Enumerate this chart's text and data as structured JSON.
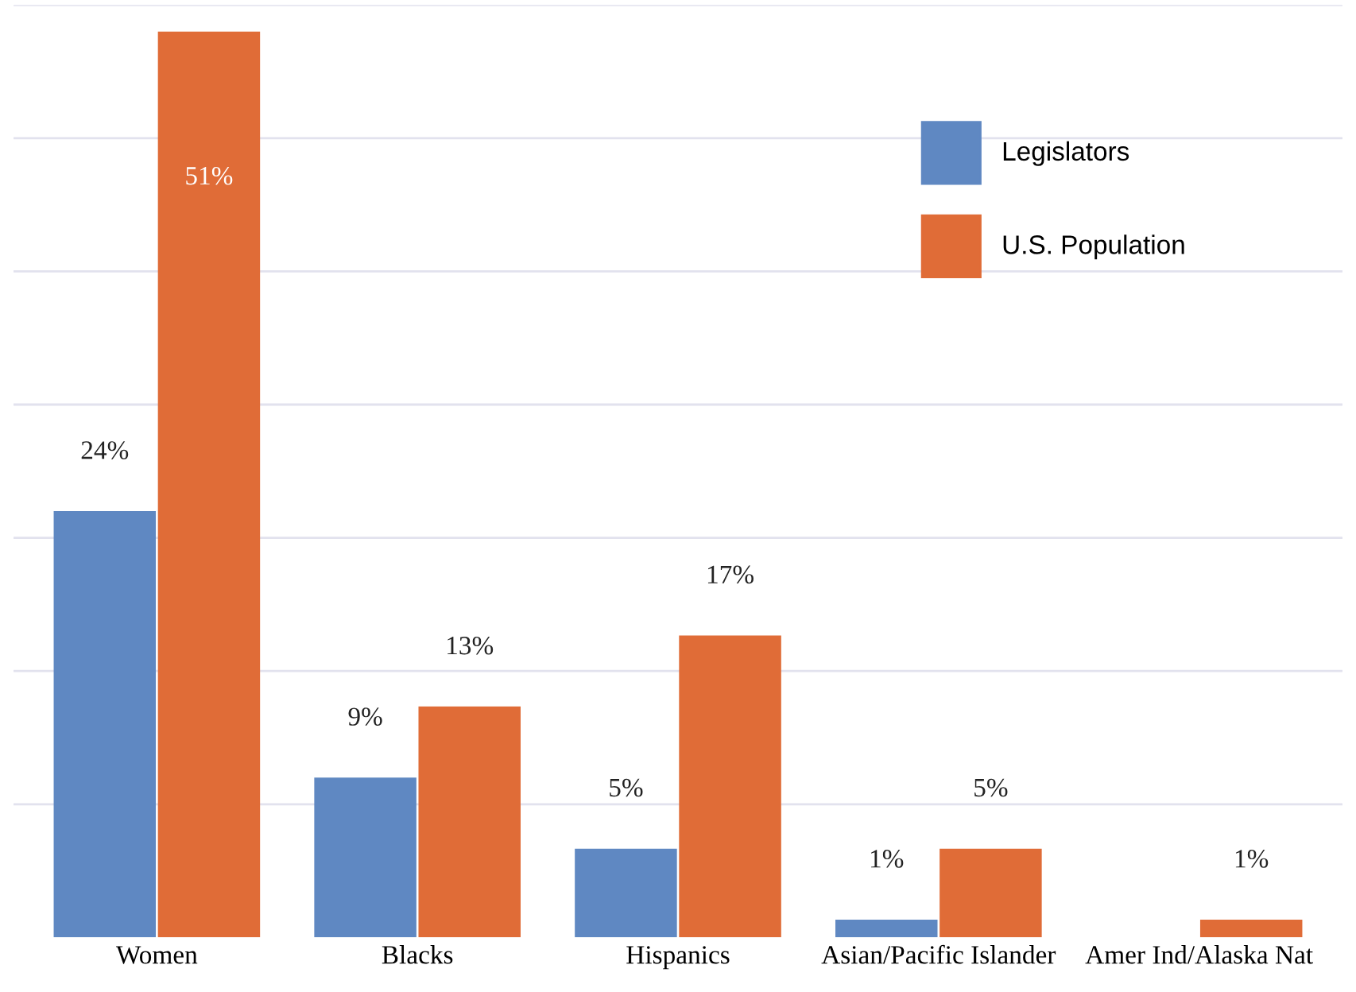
{
  "chart_data": {
    "type": "bar",
    "categories": [
      "Women",
      "Blacks",
      "Hispanics",
      "Asian/Pacific Islander",
      "Amer Ind/Alaska Nat"
    ],
    "series": [
      {
        "name": "Legislators",
        "color": "#5f88c2",
        "values": [
          24,
          9,
          5,
          1,
          0
        ],
        "value_labels": [
          "24%",
          "9%",
          "5%",
          "1%",
          null
        ]
      },
      {
        "name": "U.S. Population",
        "color": "#e06c37",
        "values": [
          51,
          13,
          17,
          5,
          1
        ],
        "value_labels": [
          "51%",
          "13%",
          "17%",
          "5%",
          "1%"
        ]
      }
    ],
    "ylim": [
      0,
      52.5
    ],
    "yticks": [
      {
        "value": 7.5,
        "label": null
      },
      {
        "value": 15,
        "label": null
      },
      {
        "value": 22.5,
        "label": null
      },
      {
        "value": 30,
        "label": null
      },
      {
        "value": 37.5,
        "label": null
      },
      {
        "value": 45,
        "label": null
      },
      {
        "value": 52.5,
        "label": null
      }
    ],
    "grid": "y",
    "legend": "top right"
  }
}
